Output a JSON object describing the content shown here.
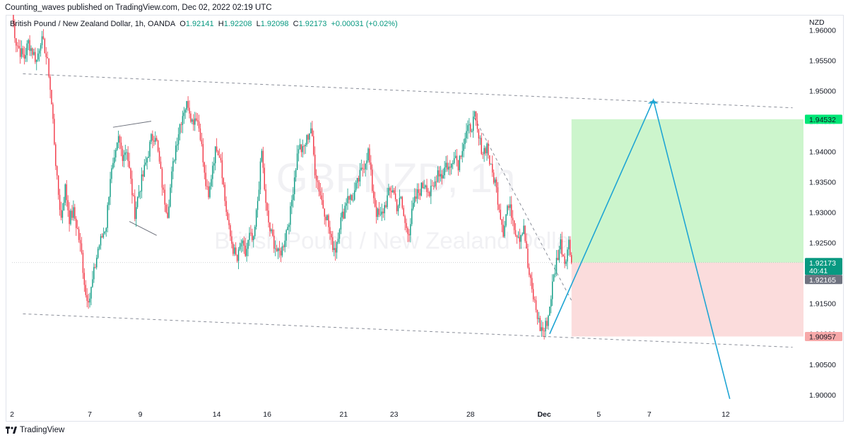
{
  "header": {
    "published_by": "Counting_waves published on TradingView.com, Dec 02, 2022 02:19 UTC"
  },
  "symbol_line": {
    "name": "British Pound / New Zealand Dollar, 1h, OANDA",
    "open_label": "O",
    "open": "1.92141",
    "high_label": "H",
    "high": "1.92208",
    "low_label": "L",
    "low": "1.92098",
    "close_label": "C",
    "close": "1.92173",
    "change": "+0.00031 (+0.02%)"
  },
  "watermark": {
    "ticker": "GBPNZD, 1h",
    "description": "British Pound / New Zealand Dollar"
  },
  "footer": {
    "brand": "TradingView"
  },
  "colors": {
    "up": "#089981",
    "down": "#f23645",
    "target_zone": "#ccf5cc",
    "stop_zone": "#fbdcdc",
    "projection": "#1fa5d4",
    "target_badge": "#00e676",
    "stop_badge": "#f7a9a9",
    "price_badge": "#089981",
    "prev_badge": "#6f7380"
  },
  "chart_data": {
    "type": "candlestick",
    "currency": "NZD",
    "ylim": [
      1.898,
      1.9625
    ],
    "y_ticks": [
      "1.96000",
      "1.95500",
      "1.95000",
      "1.94500",
      "1.94000",
      "1.93500",
      "1.93000",
      "1.92500",
      "1.92000",
      "1.91500",
      "1.91000",
      "1.90500",
      "1.90000"
    ],
    "y_tick_values": [
      1.96,
      1.955,
      1.95,
      1.945,
      1.94,
      1.935,
      1.93,
      1.925,
      1.92,
      1.915,
      1.91,
      1.905,
      1.9
    ],
    "x_ticks": [
      {
        "label": "2",
        "bar": 0
      },
      {
        "label": "7",
        "bar": 57
      },
      {
        "label": "9",
        "bar": 94
      },
      {
        "label": "14",
        "bar": 150
      },
      {
        "label": "16",
        "bar": 187
      },
      {
        "label": "21",
        "bar": 243
      },
      {
        "label": "23",
        "bar": 280
      },
      {
        "label": "28",
        "bar": 336
      },
      {
        "label": "Dec",
        "bar": 390,
        "bold": true
      },
      {
        "label": "5",
        "bar": 430
      },
      {
        "label": "7",
        "bar": 467
      },
      {
        "label": "12",
        "bar": 523
      }
    ],
    "total_bars": 580,
    "last_bar": 410,
    "anchors": [
      [
        0,
        1.9625
      ],
      [
        3,
        1.958
      ],
      [
        6,
        1.9565
      ],
      [
        9,
        1.9555
      ],
      [
        12,
        1.958
      ],
      [
        15,
        1.9565
      ],
      [
        18,
        1.955
      ],
      [
        21,
        1.9585
      ],
      [
        24,
        1.957
      ],
      [
        27,
        1.953
      ],
      [
        30,
        1.945
      ],
      [
        33,
        1.935
      ],
      [
        36,
        1.929
      ],
      [
        39,
        1.934
      ],
      [
        42,
        1.929
      ],
      [
        45,
        1.93
      ],
      [
        48,
        1.927
      ],
      [
        51,
        1.923
      ],
      [
        54,
        1.9165
      ],
      [
        57,
        1.916
      ],
      [
        60,
        1.92
      ],
      [
        63,
        1.924
      ],
      [
        66,
        1.926
      ],
      [
        69,
        1.928
      ],
      [
        72,
        1.936
      ],
      [
        75,
        1.938
      ],
      [
        78,
        1.942
      ],
      [
        81,
        1.9395
      ],
      [
        84,
        1.9405
      ],
      [
        87,
        1.935
      ],
      [
        90,
        1.93
      ],
      [
        93,
        1.9335
      ],
      [
        96,
        1.936
      ],
      [
        99,
        1.939
      ],
      [
        102,
        1.942
      ],
      [
        105,
        1.943
      ],
      [
        108,
        1.938
      ],
      [
        111,
        1.933
      ],
      [
        114,
        1.93
      ],
      [
        117,
        1.936
      ],
      [
        120,
        1.941
      ],
      [
        123,
        1.9445
      ],
      [
        126,
        1.947
      ],
      [
        129,
        1.948
      ],
      [
        132,
        1.945
      ],
      [
        135,
        1.946
      ],
      [
        138,
        1.943
      ],
      [
        141,
        1.936
      ],
      [
        144,
        1.932
      ],
      [
        147,
        1.938
      ],
      [
        150,
        1.941
      ],
      [
        153,
        1.939
      ],
      [
        156,
        1.932
      ],
      [
        159,
        1.927
      ],
      [
        162,
        1.924
      ],
      [
        165,
        1.922
      ],
      [
        168,
        1.925
      ],
      [
        171,
        1.923
      ],
      [
        174,
        1.926
      ],
      [
        177,
        1.925
      ],
      [
        180,
        1.932
      ],
      [
        183,
        1.94
      ],
      [
        186,
        1.931
      ],
      [
        189,
        1.927
      ],
      [
        192,
        1.925
      ],
      [
        195,
        1.923
      ],
      [
        198,
        1.924
      ],
      [
        201,
        1.927
      ],
      [
        204,
        1.93
      ],
      [
        207,
        1.936
      ],
      [
        210,
        1.941
      ],
      [
        213,
        1.94
      ],
      [
        216,
        1.942
      ],
      [
        219,
        1.944
      ],
      [
        222,
        1.937
      ],
      [
        225,
        1.934
      ],
      [
        228,
        1.931
      ],
      [
        231,
        1.929
      ],
      [
        234,
        1.925
      ],
      [
        237,
        1.924
      ],
      [
        240,
        1.928
      ],
      [
        243,
        1.93
      ],
      [
        246,
        1.933
      ],
      [
        249,
        1.932
      ],
      [
        252,
        1.934
      ],
      [
        255,
        1.936
      ],
      [
        258,
        1.938
      ],
      [
        261,
        1.94
      ],
      [
        264,
        1.934
      ],
      [
        267,
        1.93
      ],
      [
        270,
        1.929
      ],
      [
        273,
        1.931
      ],
      [
        276,
        1.933
      ],
      [
        279,
        1.934
      ],
      [
        282,
        1.931
      ],
      [
        285,
        1.932
      ],
      [
        288,
        1.928
      ],
      [
        291,
        1.927
      ],
      [
        294,
        1.931
      ],
      [
        297,
        1.933
      ],
      [
        300,
        1.934
      ],
      [
        303,
        1.935
      ],
      [
        306,
        1.933
      ],
      [
        309,
        1.934
      ],
      [
        312,
        1.937
      ],
      [
        315,
        1.936
      ],
      [
        318,
        1.938
      ],
      [
        321,
        1.937
      ],
      [
        324,
        1.94
      ],
      [
        327,
        1.938
      ],
      [
        330,
        1.941
      ],
      [
        333,
        1.943
      ],
      [
        336,
        1.944
      ],
      [
        339,
        1.9455
      ],
      [
        342,
        1.942
      ],
      [
        345,
        1.94
      ],
      [
        348,
        1.941
      ],
      [
        351,
        1.937
      ],
      [
        354,
        1.935
      ],
      [
        357,
        1.931
      ],
      [
        360,
        1.927
      ],
      [
        363,
        1.931
      ],
      [
        366,
        1.93
      ],
      [
        369,
        1.927
      ],
      [
        372,
        1.926
      ],
      [
        375,
        1.928
      ],
      [
        378,
        1.921
      ],
      [
        381,
        1.917
      ],
      [
        384,
        1.914
      ],
      [
        387,
        1.911
      ],
      [
        390,
        1.9105
      ],
      [
        393,
        1.913
      ],
      [
        396,
        1.918
      ],
      [
        399,
        1.922
      ],
      [
        402,
        1.925
      ],
      [
        405,
        1.922
      ],
      [
        408,
        1.925
      ],
      [
        410,
        1.92173
      ]
    ],
    "trendlines": [
      {
        "name": "channel-upper",
        "from": [
          8,
          1.9528
        ],
        "to": [
          572,
          1.9472
        ],
        "style": "dashed"
      },
      {
        "name": "channel-lower",
        "from": [
          8,
          1.9133
        ],
        "to": [
          572,
          1.9078
        ],
        "style": "dashed"
      },
      {
        "name": "falling-trendline",
        "from": [
          339,
          1.9455
        ],
        "to": [
          410,
          1.9155
        ],
        "style": "dashed"
      },
      {
        "name": "wedge-upper",
        "from": [
          74,
          1.944
        ],
        "to": [
          102,
          1.945
        ],
        "style": "solid"
      },
      {
        "name": "wedge-lower",
        "from": [
          86,
          1.9285
        ],
        "to": [
          106,
          1.9262
        ],
        "style": "solid"
      }
    ],
    "position": {
      "entry": 1.92173,
      "target": 1.94532,
      "stop": 1.90957,
      "from_bar": 410,
      "to_bar": 580
    },
    "projection_path": [
      [
        394,
        1.91
      ],
      [
        470,
        1.9485
      ],
      [
        526,
        1.8993
      ]
    ],
    "price_labels": {
      "target": "1.94532",
      "price": "1.92173",
      "countdown": "40:41",
      "prev": "1.92165",
      "stop": "1.90957"
    }
  }
}
